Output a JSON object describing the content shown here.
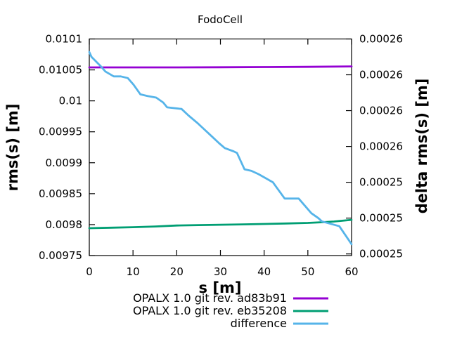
{
  "title": "FodoCell",
  "colors": {
    "background": "#ffffff",
    "axis": "#000000",
    "series1": "#9400d3",
    "series2": "#009e73",
    "difference": "#56b4e9"
  },
  "chart_data": {
    "type": "line",
    "title": "FodoCell",
    "xlabel": "s [m]",
    "ylabel": "rms(s) [m]",
    "y2label": "delta rms(s) [m]",
    "grid": false,
    "legend_position": "below-plot-right",
    "xlim": [
      0,
      60
    ],
    "ylim": [
      0.00975,
      0.0101
    ],
    "y2lim": [
      0.0002483,
      0.0002616
    ],
    "x_ticks": [
      {
        "value": 0,
        "label": "0"
      },
      {
        "value": 10,
        "label": "10"
      },
      {
        "value": 20,
        "label": "20"
      },
      {
        "value": 30,
        "label": "30"
      },
      {
        "value": 40,
        "label": "40"
      },
      {
        "value": 50,
        "label": "50"
      },
      {
        "value": 60,
        "label": "60"
      }
    ],
    "y_ticks": [
      {
        "value": 0.0101,
        "label": "0.0101"
      },
      {
        "value": 0.01005,
        "label": "0.01005"
      },
      {
        "value": 0.01,
        "label": "0.01"
      },
      {
        "value": 0.00995,
        "label": "0.00995"
      },
      {
        "value": 0.0099,
        "label": "0.0099"
      },
      {
        "value": 0.00985,
        "label": "0.00985"
      },
      {
        "value": 0.0098,
        "label": "0.0098"
      },
      {
        "value": 0.00975,
        "label": "0.00975"
      }
    ],
    "y2_ticks": [
      {
        "value": 0.0002616,
        "label": "0.00026"
      },
      {
        "value": 0.0002594,
        "label": "0.00026"
      },
      {
        "value": 0.0002572,
        "label": "0.00026"
      },
      {
        "value": 0.000255,
        "label": "0.00026"
      },
      {
        "value": 0.0002528,
        "label": "0.00025"
      },
      {
        "value": 0.0002506,
        "label": "0.00025"
      },
      {
        "value": 0.0002484,
        "label": "0.00025"
      }
    ],
    "series": [
      {
        "name": "OPALX 1.0 git rev. ad83b91",
        "axis": "y1",
        "color": "#9400d3",
        "x": [
          0,
          10,
          20,
          30,
          40,
          50,
          60
        ],
        "y": [
          0.010054,
          0.010054,
          0.0100541,
          0.0100543,
          0.0100546,
          0.010055,
          0.0100556
        ]
      },
      {
        "name": "OPALX 1.0 git rev. eb35208",
        "axis": "y1",
        "color": "#009e73",
        "x": [
          0,
          5,
          10,
          15,
          20,
          25,
          30,
          35,
          40,
          45,
          50,
          53,
          56,
          60
        ],
        "y": [
          0.0097942,
          0.009795,
          0.0097958,
          0.009797,
          0.0097986,
          0.0097992,
          0.0097998,
          0.0098004,
          0.009801,
          0.0098018,
          0.0098028,
          0.0098038,
          0.009805,
          0.0098078
        ]
      },
      {
        "name": "difference",
        "axis": "y2",
        "color": "#56b4e9",
        "x": [
          0,
          0.5,
          2.7,
          3.7,
          5.6,
          7.2,
          8.8,
          10.1,
          11.7,
          13.3,
          15.3,
          16.9,
          17.8,
          21.1,
          22.7,
          24.9,
          26.5,
          28.1,
          29.7,
          31,
          33,
          33.8,
          35.5,
          37.1,
          38.7,
          42,
          42.8,
          44.7,
          47.9,
          50.8,
          52.4,
          53.2,
          57.2,
          60
        ],
        "y": [
          0.0002608,
          0.0002605,
          0.0002599,
          0.0002596,
          0.0002593,
          0.0002593,
          0.0002592,
          0.0002588,
          0.0002582,
          0.0002581,
          0.000258,
          0.0002577,
          0.0002574,
          0.0002573,
          0.0002569,
          0.0002564,
          0.000256,
          0.0002556,
          0.0002552,
          0.0002549,
          0.0002547,
          0.0002546,
          0.0002536,
          0.0002535,
          0.0002533,
          0.0002528,
          0.0002525,
          0.0002518,
          0.0002518,
          0.0002509,
          0.0002506,
          0.0002504,
          0.0002501,
          0.000249
        ]
      }
    ]
  }
}
